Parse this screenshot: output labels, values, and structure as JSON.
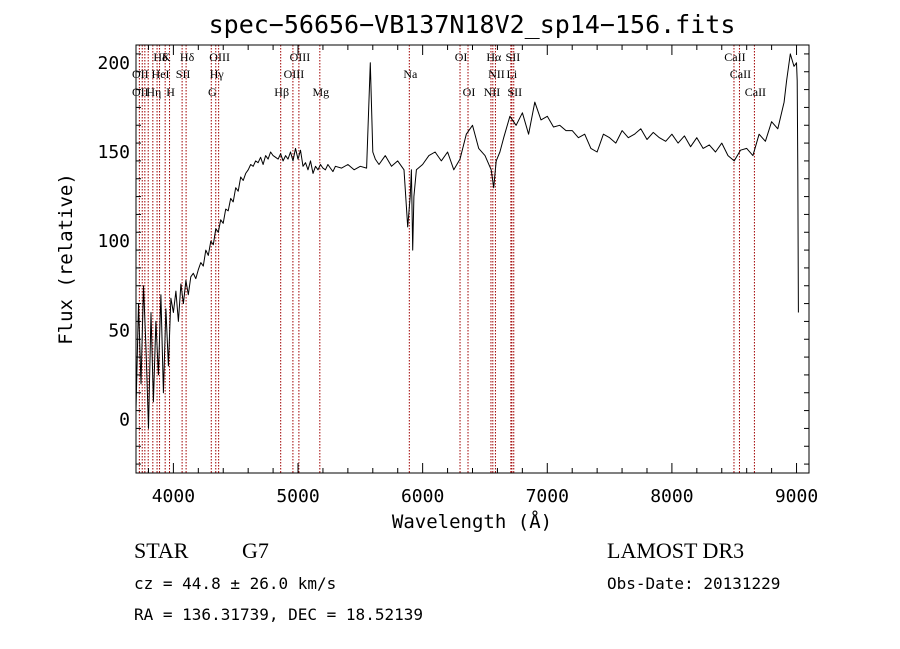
{
  "chart_data": {
    "type": "line",
    "title": "spec−56656−VB137N18V2_sp14−156.fits",
    "xlabel": "Wavelength (Å)",
    "ylabel": "Flux (relative)",
    "xlim": [
      3700,
      9100
    ],
    "ylim": [
      -30,
      210
    ],
    "xticks": [
      4000,
      5000,
      6000,
      7000,
      8000,
      9000
    ],
    "yticks": [
      0,
      50,
      100,
      150,
      200
    ],
    "grid": false,
    "series": [
      {
        "x": [
          3700,
          3720,
          3740,
          3760,
          3780,
          3800,
          3820,
          3840,
          3860,
          3880,
          3900,
          3920,
          3940,
          3960,
          3980,
          4000,
          4020,
          4040,
          4060,
          4080,
          4100,
          4120,
          4140,
          4160,
          4180,
          4200,
          4220,
          4240,
          4260,
          4280,
          4300,
          4320,
          4340,
          4360,
          4380,
          4400,
          4420,
          4440,
          4460,
          4480,
          4500,
          4520,
          4540,
          4560,
          4580,
          4600,
          4620,
          4640,
          4660,
          4680,
          4700,
          4720,
          4740,
          4760,
          4780,
          4800,
          4820,
          4840,
          4860,
          4880,
          4900,
          4920,
          4940,
          4960,
          4980,
          5000,
          5020,
          5040,
          5060,
          5080,
          5100,
          5120,
          5140,
          5160,
          5180,
          5200,
          5220,
          5240,
          5260,
          5280,
          5300,
          5350,
          5400,
          5450,
          5500,
          5550,
          5580,
          5600,
          5620,
          5650,
          5700,
          5750,
          5800,
          5850,
          5880,
          5900,
          5910,
          5920,
          5930,
          5950,
          6000,
          6050,
          6100,
          6150,
          6200,
          6250,
          6300,
          6350,
          6400,
          6450,
          6500,
          6550,
          6570,
          6590,
          6620,
          6650,
          6700,
          6750,
          6800,
          6850,
          6900,
          6950,
          7000,
          7050,
          7100,
          7150,
          7200,
          7250,
          7300,
          7350,
          7400,
          7450,
          7500,
          7550,
          7600,
          7650,
          7700,
          7750,
          7800,
          7850,
          7900,
          7950,
          8000,
          8050,
          8100,
          8150,
          8200,
          8250,
          8300,
          8350,
          8400,
          8450,
          8500,
          8550,
          8600,
          8650,
          8700,
          8750,
          8800,
          8850,
          8900,
          8920,
          8950,
          8980,
          9000,
          9005,
          9010,
          9015
        ],
        "y": [
          5,
          65,
          20,
          75,
          40,
          -5,
          60,
          10,
          55,
          25,
          70,
          15,
          62,
          30,
          68,
          60,
          72,
          55,
          76,
          65,
          78,
          70,
          80,
          82,
          79,
          84,
          88,
          86,
          95,
          92,
          100,
          98,
          107,
          105,
          112,
          110,
          118,
          117,
          124,
          122,
          130,
          128,
          136,
          134,
          138,
          140,
          143,
          142,
          145,
          144,
          147,
          143,
          148,
          146,
          150,
          148,
          147,
          146,
          149,
          145,
          148,
          146,
          150,
          145,
          152,
          146,
          151,
          142,
          144,
          140,
          145,
          138,
          142,
          140,
          143,
          141,
          140,
          143,
          141,
          139,
          142,
          141,
          143,
          140,
          142,
          141,
          200,
          150,
          146,
          143,
          148,
          142,
          145,
          140,
          108,
          125,
          140,
          95,
          125,
          140,
          143,
          148,
          150,
          145,
          150,
          140,
          146,
          160,
          165,
          152,
          148,
          140,
          130,
          145,
          150,
          158,
          170,
          165,
          172,
          160,
          178,
          168,
          170,
          164,
          165,
          162,
          162,
          158,
          160,
          152,
          150,
          160,
          158,
          155,
          162,
          158,
          160,
          163,
          157,
          161,
          158,
          156,
          160,
          155,
          159,
          153,
          158,
          152,
          154,
          150,
          155,
          148,
          145,
          151,
          152,
          148,
          160,
          156,
          167,
          163,
          178,
          190,
          205,
          198,
          200,
          190,
          140,
          60
        ]
      }
    ],
    "annotations": [
      {
        "label": "Hδ",
        "x": 3889,
        "row": 1
      },
      {
        "label": "K",
        "x": 3934,
        "row": 1
      },
      {
        "label": "Hδ",
        "x": 4102,
        "row": 1
      },
      {
        "label": "OIII",
        "x": 4363,
        "row": 1
      },
      {
        "label": "OIII",
        "x": 5007,
        "row": 1
      },
      {
        "label": "OI",
        "x": 6300,
        "row": 1
      },
      {
        "label": "Hα",
        "x": 6563,
        "row": 1
      },
      {
        "label": "SII",
        "x": 6716,
        "row": 1
      },
      {
        "label": "CaII",
        "x": 8498,
        "row": 1
      },
      {
        "label": "OII",
        "x": 3727,
        "row": 2
      },
      {
        "label": "HeI",
        "x": 3889,
        "row": 2
      },
      {
        "label": "SII",
        "x": 4070,
        "row": 2
      },
      {
        "label": "Hγ",
        "x": 4340,
        "row": 2
      },
      {
        "label": "OIII",
        "x": 4959,
        "row": 2
      },
      {
        "label": "Na",
        "x": 5893,
        "row": 2
      },
      {
        "label": "NII",
        "x": 6584,
        "row": 2
      },
      {
        "label": "Li",
        "x": 6708,
        "row": 2
      },
      {
        "label": "CaII",
        "x": 8542,
        "row": 2
      },
      {
        "label": "OII",
        "x": 3727,
        "row": 3
      },
      {
        "label": "Hη",
        "x": 3835,
        "row": 3
      },
      {
        "label": "H",
        "x": 3969,
        "row": 3
      },
      {
        "label": "G",
        "x": 4304,
        "row": 3
      },
      {
        "label": "Hβ",
        "x": 4861,
        "row": 3
      },
      {
        "label": "Mg",
        "x": 5175,
        "row": 3
      },
      {
        "label": "OI",
        "x": 6364,
        "row": 3
      },
      {
        "label": "NII",
        "x": 6548,
        "row": 3
      },
      {
        "label": "SII",
        "x": 6731,
        "row": 3
      },
      {
        "label": "CaII",
        "x": 8662,
        "row": 3
      }
    ],
    "vlines": [
      3727,
      3750,
      3771,
      3798,
      3835,
      3869,
      3889,
      3934,
      3969,
      4070,
      4102,
      4304,
      4340,
      4363,
      4861,
      4959,
      5007,
      5175,
      5893,
      6300,
      6364,
      6548,
      6563,
      6584,
      6708,
      6716,
      6731,
      8498,
      8542,
      8662
    ],
    "vline_color": "#a00000",
    "line_color": "#000000"
  },
  "info": {
    "class_label": "STAR",
    "subclass": "G7",
    "survey": "LAMOST DR3",
    "redshift": "cz = 44.8 ± 26.0 km/s",
    "obs_date": "Obs-Date: 20131229",
    "coords": "RA = 136.31739, DEC =  18.52139"
  }
}
